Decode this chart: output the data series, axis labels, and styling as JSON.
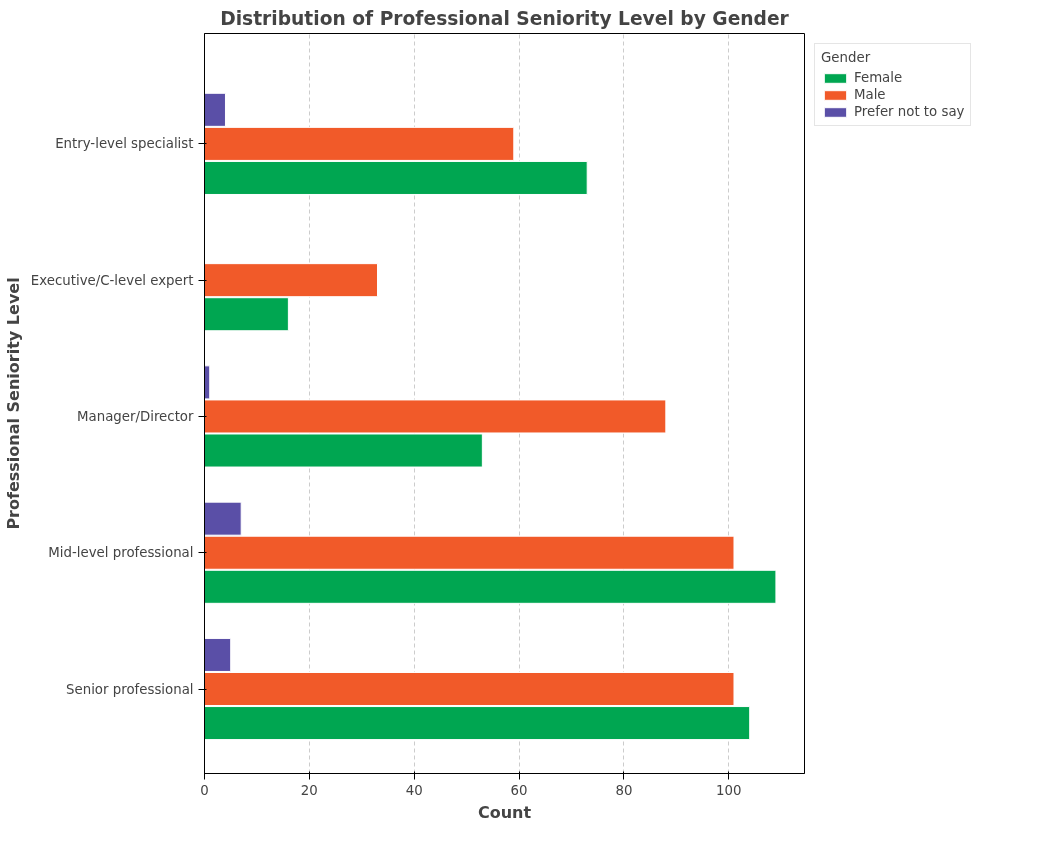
{
  "chart_data": {
    "type": "bar",
    "orientation": "horizontal",
    "title": "Distribution of Professional Seniority Level by Gender",
    "xlabel": "Count",
    "ylabel": "Professional Seniority Level",
    "legend_title": "Gender",
    "legend": "top right",
    "grid": "x",
    "categories": [
      "Entry-level specialist",
      "Executive/C-level expert",
      "Manager/Director",
      "Mid-level professional",
      "Senior professional"
    ],
    "series": [
      {
        "name": "Female",
        "color": "#00a651",
        "values": [
          73,
          16,
          53,
          109,
          104
        ]
      },
      {
        "name": "Male",
        "color": "#f15a29",
        "values": [
          59,
          33,
          88,
          101,
          101
        ]
      },
      {
        "name": "Prefer not to say",
        "color": "#5a4fa7",
        "values": [
          4,
          null,
          1,
          7,
          5
        ]
      }
    ],
    "xlim": [
      0,
      114.45
    ],
    "xticks": [
      0,
      20,
      40,
      60,
      80,
      100
    ]
  }
}
